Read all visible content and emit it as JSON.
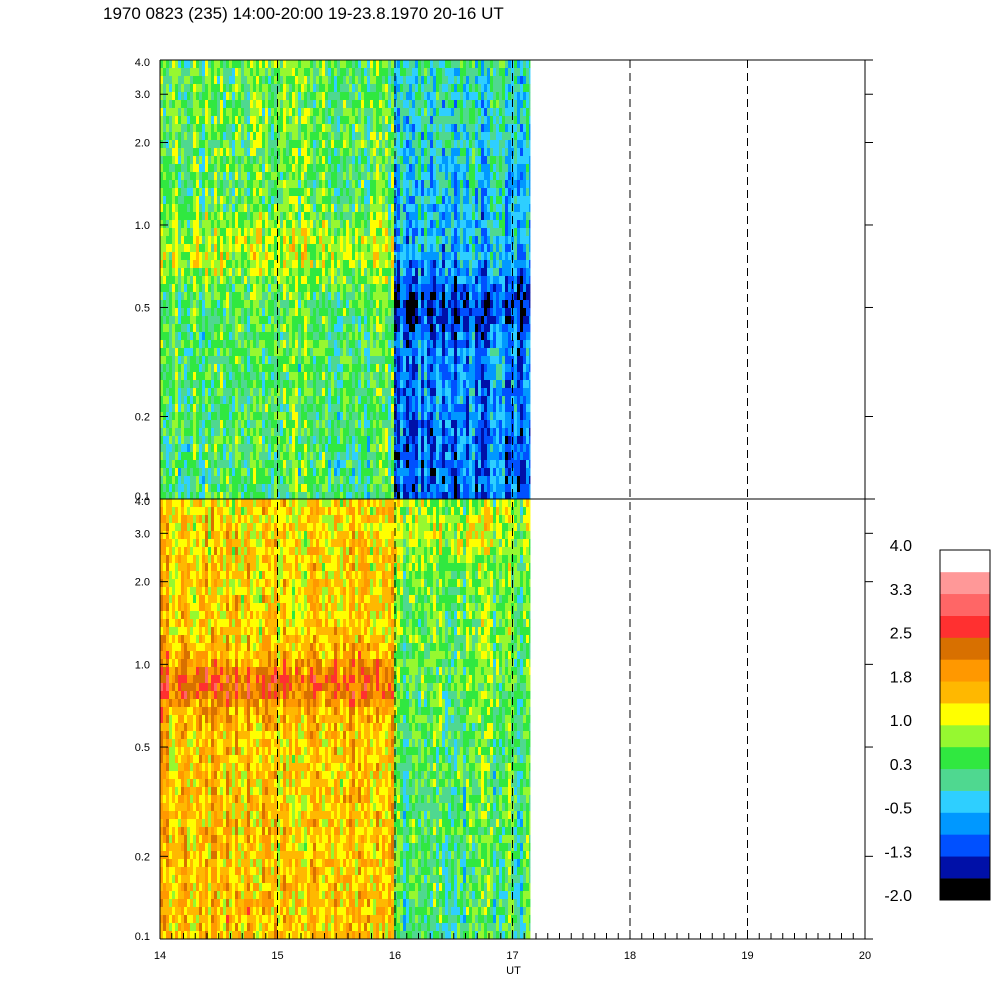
{
  "title": "1970 0823 (235) 14:00-20:00 19-23.8.1970  20-16 UT",
  "colors": {
    "scale": [
      "#000000",
      "#0010a8",
      "#0050ff",
      "#0098ff",
      "#2ecfff",
      "#4fd890",
      "#30e840",
      "#96f830",
      "#ffff00",
      "#ffb800",
      "#ff9800",
      "#d87000",
      "#ff3030",
      "#ff6666",
      "#ff9898",
      "#ffffff"
    ],
    "axis": "#000000",
    "background": "#ffffff"
  },
  "chart_data": {
    "type": "heatmap",
    "x_unit_label": "UT",
    "x_range": [
      14,
      20
    ],
    "x_ticks": [
      "14",
      "15",
      "16",
      "17",
      "18",
      "19",
      "20"
    ],
    "x_dashed_lines": [
      15,
      16,
      17,
      18,
      19
    ],
    "data_end_x": 17.15,
    "y_scale": "log",
    "y_range": [
      0.1,
      4.0
    ],
    "y_ticks": [
      "0.1",
      "0.2",
      "0.5",
      "1.0",
      "2.0",
      "3.0",
      "4.0"
    ],
    "y_tick_values": [
      0.1,
      0.2,
      0.5,
      1.0,
      2.0,
      3.0,
      4.0
    ],
    "colorbar": {
      "labels": [
        "4.0",
        "3.3",
        "2.5",
        "1.8",
        "1.0",
        "0.3",
        "-0.5",
        "-1.3",
        "-2.0"
      ],
      "range": [
        -2.0,
        4.0
      ]
    },
    "panels": [
      {
        "name": "upper",
        "segments": [
          {
            "x_start": 14.0,
            "x_end": 16.0,
            "low_freq_value": 0.3,
            "high_freq_value": 0.5,
            "peak_freq": 0.8,
            "peak_value": 1.0
          },
          {
            "x_start": 16.0,
            "x_end": 17.15,
            "low_freq_value": -1.0,
            "high_freq_value": 0.0,
            "peak_freq": 0.5,
            "peak_value": -1.3
          }
        ]
      },
      {
        "name": "lower",
        "segments": [
          {
            "x_start": 14.0,
            "x_end": 16.0,
            "low_freq_value": 1.6,
            "high_freq_value": 1.4,
            "peak_freq": 0.85,
            "peak_value": 2.3
          },
          {
            "x_start": 16.0,
            "x_end": 17.15,
            "low_freq_value": 0.2,
            "high_freq_value": 0.6,
            "peak_freq": 3.0,
            "peak_value": 0.9
          }
        ]
      }
    ]
  }
}
